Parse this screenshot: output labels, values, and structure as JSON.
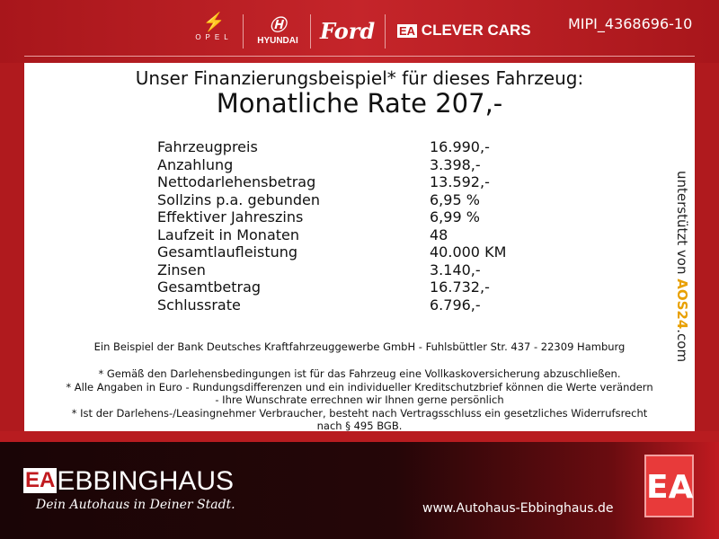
{
  "header": {
    "brands": [
      "OPEL",
      "HYUNDAI",
      "Ford",
      "CLEVER CARS"
    ],
    "clever_logo": "EA",
    "id": "MIPI_4368696-10"
  },
  "headline": "Unser Finanzierungsbeispiel* für dieses Fahrzeug:",
  "rate": "Monatliche Rate 207,-",
  "rows": [
    {
      "label": "Fahrzeugpreis",
      "value": "16.990,-"
    },
    {
      "label": "Anzahlung",
      "value": "3.398,-"
    },
    {
      "label": "Nettodarlehensbetrag",
      "value": "13.592,-"
    },
    {
      "label": "Sollzins p.a. gebunden",
      "value": "6,95 %"
    },
    {
      "label": "Effektiver Jahreszins",
      "value": "6,99 %"
    },
    {
      "label": "Laufzeit in Monaten",
      "value": "48"
    },
    {
      "label": "Gesamtlaufleistung",
      "value": "40.000 KM"
    },
    {
      "label": "Zinsen",
      "value": "3.140,-"
    },
    {
      "label": "Gesamtbetrag",
      "value": "16.732,-"
    },
    {
      "label": "Schlussrate",
      "value": "6.796,-"
    }
  ],
  "bank": "Ein Beispiel der Bank Deutsches Kraftfahrzeuggewerbe GmbH - Fuhlsbüttler Str. 437 - 22309 Hamburg",
  "notes": [
    "* Gemäß den Darlehensbedingungen ist für das Fahrzeug eine Vollkaskoversicherung abzuschließen.",
    "* Alle Angaben in Euro - Rundungsdifferenzen und ein individueller Kreditschutzbrief können die Werte verändern",
    "- Ihre Wunschrate errechnen wir Ihnen gerne persönlich",
    "* Ist der Darlehens-/Leasingnehmer Verbraucher, besteht nach Vertragsschluss ein gesetzliches Widerrufsrecht",
    "nach § 495 BGB."
  ],
  "side": {
    "prefix": "unterstützt von ",
    "brand": "AOS24",
    "suffix": ".com"
  },
  "footer": {
    "logo_mark": "EA",
    "name": "EBBINGHAUS",
    "slogan": "Dein Autohaus in Deiner Stadt.",
    "url": "www.Autohaus-Ebbinghaus.de",
    "big_mark": "EA"
  }
}
